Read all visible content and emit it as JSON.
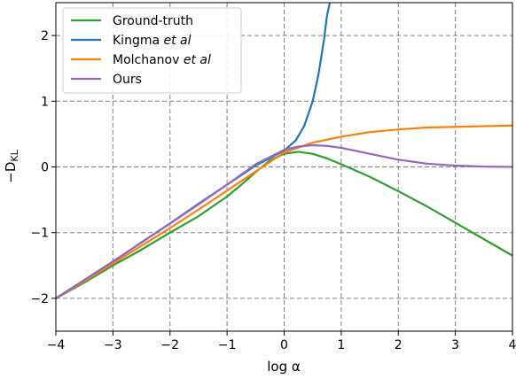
{
  "chart_data": {
    "type": "line",
    "xlabel": "log α",
    "ylabel": "−D",
    "ylabel_sub": "KL",
    "xlim": [
      -4,
      4
    ],
    "ylim": [
      -2.5,
      2.5
    ],
    "grid": true,
    "legend_placement": "top-left",
    "x_ticks": [
      -4,
      -3,
      -2,
      -1,
      0,
      1,
      2,
      3,
      4
    ],
    "x_tick_labels": [
      "−4",
      "−3",
      "−2",
      "−1",
      "0",
      "1",
      "2",
      "3",
      "4"
    ],
    "y_ticks": [
      -2,
      -1,
      0,
      1,
      2
    ],
    "y_tick_labels": [
      "−2",
      "−1",
      "0",
      "1",
      "2"
    ],
    "series": [
      {
        "name": "Ground-truth",
        "color": "#2ca02c",
        "x": [
          -4,
          -3.5,
          -3,
          -2.5,
          -2,
          -1.5,
          -1,
          -0.75,
          -0.5,
          -0.25,
          0,
          0.25,
          0.5,
          0.75,
          1,
          1.5,
          2,
          2.5,
          3,
          3.5,
          4
        ],
        "y": [
          -2.0,
          -1.76,
          -1.5,
          -1.26,
          -1.0,
          -0.75,
          -0.45,
          -0.27,
          -0.08,
          0.1,
          0.2,
          0.23,
          0.2,
          0.13,
          0.04,
          -0.15,
          -0.37,
          -0.6,
          -0.85,
          -1.1,
          -1.35
        ]
      },
      {
        "name": "Kingma et al",
        "name_parts": [
          "Kingma ",
          "et al"
        ],
        "color": "#1f77b4",
        "x": [
          -4,
          -3.5,
          -3,
          -2.5,
          -2,
          -1.5,
          -1,
          -0.5,
          0,
          0.2,
          0.35,
          0.5,
          0.6,
          0.7,
          0.75,
          0.8
        ],
        "y": [
          -2.0,
          -1.72,
          -1.44,
          -1.15,
          -0.86,
          -0.56,
          -0.27,
          0.02,
          0.25,
          0.4,
          0.62,
          1.0,
          1.4,
          1.95,
          2.3,
          2.5
        ]
      },
      {
        "name": "Molchanov et al",
        "name_parts": [
          "Molchanov ",
          "et al"
        ],
        "color": "#ff7f0e",
        "x": [
          -4,
          -3.5,
          -3,
          -2.5,
          -2,
          -1.5,
          -1,
          -0.5,
          0,
          0.5,
          1,
          1.5,
          2,
          2.5,
          3,
          3.5,
          4
        ],
        "y": [
          -2.0,
          -1.74,
          -1.47,
          -1.2,
          -0.93,
          -0.65,
          -0.36,
          -0.07,
          0.22,
          0.37,
          0.46,
          0.53,
          0.57,
          0.6,
          0.61,
          0.62,
          0.63
        ]
      },
      {
        "name": "Ours",
        "color": "#9467bd",
        "x": [
          -4,
          -3.5,
          -3,
          -2.5,
          -2,
          -1.5,
          -1,
          -0.5,
          0,
          0.25,
          0.5,
          0.75,
          1,
          1.5,
          2,
          2.5,
          3,
          3.5,
          4
        ],
        "y": [
          -2.0,
          -1.72,
          -1.44,
          -1.15,
          -0.86,
          -0.57,
          -0.27,
          0.04,
          0.26,
          0.31,
          0.33,
          0.32,
          0.29,
          0.2,
          0.11,
          0.05,
          0.02,
          0.005,
          0.0
        ]
      }
    ]
  }
}
